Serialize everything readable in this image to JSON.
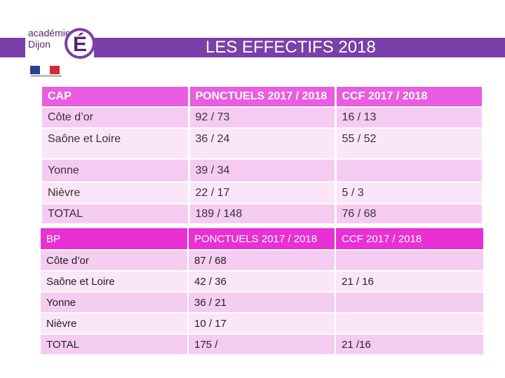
{
  "slide": {
    "title": "LES EFFECTIFS 2018",
    "logo_line1": "académie",
    "logo_line2": "Dijon",
    "logo_letter": "É"
  },
  "colors": {
    "header_bar": "#7a3fa8",
    "table1_header": "#ea5ce0",
    "table2_header": "#e830d4"
  },
  "table_cap": {
    "headers": [
      "CAP",
      "PONCTUELS 2017 / 2018",
      "CCF 2017 / 2018"
    ],
    "rows": [
      [
        "Côte d’or",
        "92 / 73",
        "16 / 13"
      ],
      [
        "Saône et Loire",
        "36 / 24",
        "55 / 52"
      ],
      [
        "Yonne",
        "39 / 34",
        ""
      ],
      [
        "Nièvre",
        "22 / 17",
        "5 / 3"
      ],
      [
        "TOTAL",
        "189 / 148",
        "76 / 68"
      ]
    ]
  },
  "table_bp": {
    "headers": [
      "BP",
      "PONCTUELS 2017 / 2018",
      "CCF 2017 / 2018"
    ],
    "rows": [
      [
        "Côte d’or",
        "87 / 68",
        ""
      ],
      [
        "Saône et Loire",
        "42 / 36",
        "21 / 16"
      ],
      [
        "Yonne",
        "36 / 21",
        ""
      ],
      [
        "Nièvre",
        "10 / 17",
        ""
      ],
      [
        "TOTAL",
        "175 /",
        "21 /16"
      ]
    ]
  }
}
